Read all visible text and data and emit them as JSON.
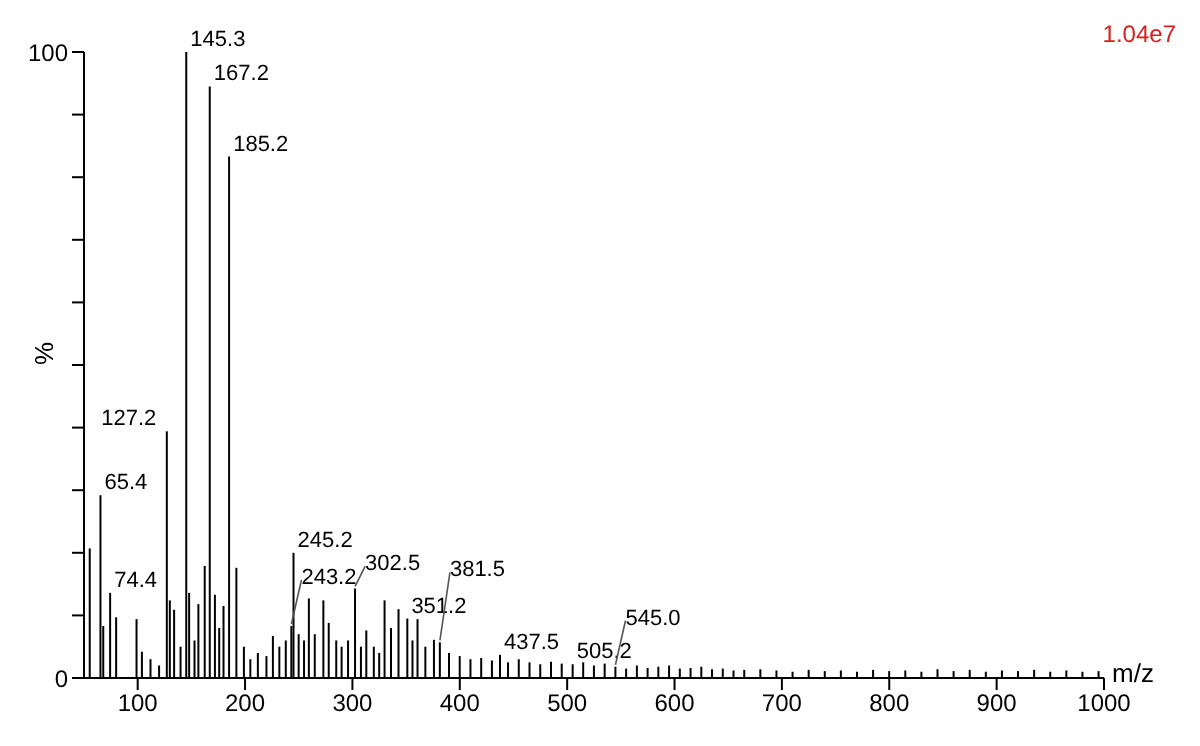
{
  "chart_data": {
    "type": "bar",
    "ylabel": "%",
    "xlabel": "m/z",
    "color": "#000000",
    "annotations": [
      "1.04e7",
      {
        "text": "65.4",
        "x": 65.4,
        "y": 29.2
      },
      {
        "text": "74.4",
        "x": 74.4,
        "y": 13.6
      },
      {
        "text": "127.2",
        "x": 127.2,
        "y": 39.4
      },
      {
        "text": "145.3",
        "x": 145.3,
        "y": 100
      },
      {
        "text": "167.2",
        "x": 167.2,
        "y": 94.5
      },
      {
        "text": "185.2",
        "x": 185.2,
        "y": 83.3
      },
      {
        "text": "243.2",
        "x": 243.2,
        "y": 8.3
      },
      {
        "text": "245.2",
        "x": 245.2,
        "y": 20
      },
      {
        "text": "302.5",
        "x": 302.5,
        "y": 14.3
      },
      {
        "text": "351.2",
        "x": 351.2,
        "y": 9.5
      },
      {
        "text": "381.5",
        "x": 381.5,
        "y": 5.7
      },
      {
        "text": "437.5",
        "x": 437.5,
        "y": 3.7
      },
      {
        "text": "505.2",
        "x": 505.2,
        "y": 2.2
      },
      {
        "text": "545.0",
        "x": 545,
        "y": 1.8
      }
    ],
    "x": [
      55.4,
      65.4,
      68,
      74.4,
      80,
      99,
      104,
      112,
      120,
      127.2,
      130,
      134,
      140,
      145.3,
      148,
      153,
      156.6,
      162.5,
      167.2,
      172,
      176,
      180,
      185.2,
      192,
      199,
      205,
      212,
      220,
      226,
      232,
      238,
      243.2,
      245.2,
      250,
      255,
      259.5,
      265,
      273,
      278,
      285,
      290,
      296,
      302.5,
      308,
      313,
      320,
      325,
      330,
      336,
      343,
      351.2,
      356,
      360.7,
      368,
      376,
      381.5,
      390,
      400,
      410,
      420,
      430,
      437.5,
      445,
      455,
      465,
      475,
      485,
      495,
      505.2,
      515,
      525,
      535,
      545,
      555,
      565,
      575,
      585,
      595,
      605,
      615,
      625,
      635,
      645,
      655,
      665,
      680,
      695,
      710,
      725,
      740,
      755,
      770,
      785,
      800,
      815,
      830,
      845,
      860,
      875,
      890,
      905,
      920,
      935,
      950,
      965,
      980,
      995
    ],
    "values": [
      20.7,
      29.2,
      8.3,
      13.6,
      9.7,
      9.4,
      4.2,
      3,
      2,
      39.4,
      12.4,
      10.9,
      5,
      100,
      13.6,
      6,
      11.8,
      17.9,
      94.5,
      13.3,
      8,
      11.5,
      83.3,
      17.6,
      5,
      3,
      4,
      3.5,
      6.7,
      5,
      6,
      8.3,
      20,
      7,
      6,
      12.7,
      7,
      12.4,
      8.8,
      6,
      5,
      6,
      14.3,
      5,
      7.6,
      5,
      4,
      12.4,
      8,
      11,
      9.5,
      6,
      9.4,
      5,
      6.1,
      5.7,
      4,
      3.5,
      3,
      3.2,
      2.8,
      3.7,
      2.5,
      3,
      2.5,
      2.2,
      2.6,
      2.3,
      2.2,
      2.5,
      2,
      2.3,
      1.8,
      1.5,
      2,
      1.6,
      1.8,
      2,
      1.5,
      1.6,
      1.8,
      1.4,
      1.5,
      1.2,
      1.3,
      1.4,
      1.2,
      1,
      1.3,
      1.1,
      1.2,
      1,
      1.3,
      1.1,
      1.2,
      1,
      1.4,
      1.1,
      1.3,
      1,
      1.2,
      1.1,
      1.3,
      1,
      1.2,
      1,
      1.1
    ],
    "xlim": [
      50,
      1000
    ],
    "xticks": [
      100,
      200,
      300,
      400,
      500,
      600,
      700,
      800,
      900,
      1000
    ],
    "ylim": [
      0,
      100
    ],
    "yticks": [
      0,
      {
        "value": 10,
        "label": null
      },
      {
        "value": 20,
        "label": null
      },
      {
        "value": 30,
        "label": null
      },
      {
        "value": 40,
        "label": null
      },
      {
        "value": 50,
        "label": null
      },
      {
        "value": 60,
        "label": null
      },
      {
        "value": 70,
        "label": null
      },
      {
        "value": 80,
        "label": null
      },
      {
        "value": 90,
        "label": null
      },
      100
    ]
  }
}
